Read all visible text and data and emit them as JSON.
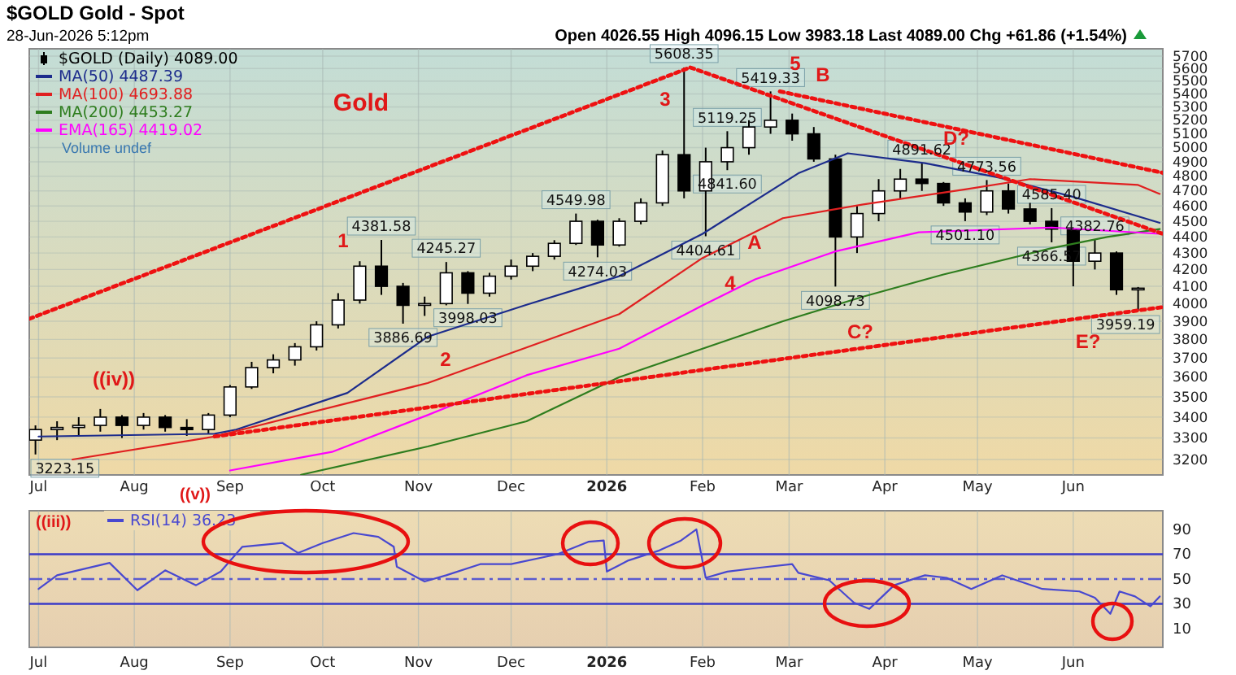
{
  "chart_data": [
    {
      "type": "candlestick",
      "title": "$GOLD Gold - Spot",
      "subtitle": "28-Jun-2026 5:12pm",
      "log": true,
      "grid": true,
      "legend": "top left",
      "xlim": [
        "2025-06-28",
        "2026-06-30"
      ],
      "ylim": [
        3130,
        5760
      ],
      "xticks": [
        {
          "value": "2025-07-01",
          "label": "Jul"
        },
        {
          "value": "2025-08-01",
          "label": "Aug"
        },
        {
          "value": "2025-09-01",
          "label": "Sep"
        },
        {
          "value": "2025-10-01",
          "label": "Oct"
        },
        {
          "value": "2025-11-01",
          "label": "Nov"
        },
        {
          "value": "2025-12-01",
          "label": "Dec"
        },
        {
          "value": "2026-01-01",
          "label": "2026"
        },
        {
          "value": "2026-02-01",
          "label": "Feb"
        },
        {
          "value": "2026-03-01",
          "label": "Mar"
        },
        {
          "value": "2026-04-01",
          "label": "Apr"
        },
        {
          "value": "2026-05-01",
          "label": "May"
        },
        {
          "value": "2026-06-01",
          "label": "Jun"
        }
      ],
      "yticks": [
        3200,
        3300,
        3400,
        3500,
        3600,
        3700,
        3800,
        3900,
        4000,
        4100,
        4200,
        4300,
        4400,
        4500,
        4600,
        4700,
        4800,
        4900,
        5000,
        5100,
        5200,
        5300,
        5400,
        5500,
        5600,
        5700
      ],
      "series": [
        {
          "name": "$GOLD (Daily) 4089.00",
          "color": "#000000",
          "x": [
            "2025-06-30",
            "2025-07-07",
            "2025-07-14",
            "2025-07-21",
            "2025-07-28",
            "2025-08-04",
            "2025-08-11",
            "2025-08-18",
            "2025-08-25",
            "2025-09-01",
            "2025-09-08",
            "2025-09-15",
            "2025-09-22",
            "2025-09-29",
            "2025-10-06",
            "2025-10-13",
            "2025-10-20",
            "2025-10-27",
            "2025-11-03",
            "2025-11-10",
            "2025-11-17",
            "2025-11-24",
            "2025-12-01",
            "2025-12-08",
            "2025-12-15",
            "2025-12-22",
            "2025-12-29",
            "2026-01-05",
            "2026-01-12",
            "2026-01-19",
            "2026-01-26",
            "2026-02-02",
            "2026-02-09",
            "2026-02-16",
            "2026-02-23",
            "2026-03-02",
            "2026-03-09",
            "2026-03-16",
            "2026-03-23",
            "2026-03-30",
            "2026-04-06",
            "2026-04-13",
            "2026-04-20",
            "2026-04-27",
            "2026-05-04",
            "2026-05-11",
            "2026-05-18",
            "2026-05-25",
            "2026-06-01",
            "2026-06-08",
            "2026-06-15",
            "2026-06-22"
          ],
          "ohlc": [
            [
              3290,
              3360,
              3223.15,
              3340
            ],
            [
              3340,
              3380,
              3290,
              3350
            ],
            [
              3350,
              3400,
              3310,
              3360
            ],
            [
              3360,
              3440,
              3330,
              3400
            ],
            [
              3400,
              3410,
              3300,
              3360
            ],
            [
              3360,
              3420,
              3340,
              3400
            ],
            [
              3400,
              3410,
              3330,
              3350
            ],
            [
              3350,
              3390,
              3310,
              3340
            ],
            [
              3340,
              3420,
              3320,
              3410
            ],
            [
              3410,
              3560,
              3400,
              3550
            ],
            [
              3550,
              3680,
              3540,
              3650
            ],
            [
              3650,
              3720,
              3620,
              3690
            ],
            [
              3690,
              3780,
              3660,
              3760
            ],
            [
              3760,
              3900,
              3740,
              3880
            ],
            [
              3880,
              4060,
              3860,
              4020
            ],
            [
              4020,
              4250,
              4000,
              4220
            ],
            [
              4220,
              4381.58,
              4050,
              4100
            ],
            [
              4100,
              4120,
              3886.69,
              3990
            ],
            [
              3990,
              4040,
              3930,
              4000
            ],
            [
              4000,
              4245.27,
              3990,
              4180
            ],
            [
              4180,
              4190,
              3998.03,
              4060
            ],
            [
              4060,
              4180,
              4040,
              4160
            ],
            [
              4160,
              4260,
              4140,
              4220
            ],
            [
              4220,
              4300,
              4190,
              4280
            ],
            [
              4280,
              4380,
              4260,
              4360
            ],
            [
              4360,
              4549.98,
              4350,
              4500
            ],
            [
              4500,
              4510,
              4274.03,
              4350
            ],
            [
              4350,
              4520,
              4340,
              4500
            ],
            [
              4500,
              4650,
              4480,
              4620
            ],
            [
              4620,
              4980,
              4600,
              4950
            ],
            [
              4950,
              5608.35,
              4650,
              4700
            ],
            [
              4700,
              5000,
              4404.61,
              4900
            ],
            [
              4900,
              5119.25,
              4841.6,
              5000
            ],
            [
              5000,
              5200,
              4950,
              5150
            ],
            [
              5150,
              5419.33,
              5100,
              5200
            ],
            [
              5200,
              5250,
              5050,
              5100
            ],
            [
              5100,
              5150,
              4900,
              4920
            ],
            [
              4920,
              4950,
              4098.73,
              4400
            ],
            [
              4400,
              4600,
              4300,
              4550
            ],
            [
              4550,
              4780,
              4500,
              4700
            ],
            [
              4700,
              4850,
              4650,
              4780
            ],
            [
              4780,
              4891.62,
              4700,
              4750
            ],
            [
              4750,
              4760,
              4600,
              4620
            ],
            [
              4620,
              4650,
              4501.1,
              4560
            ],
            [
              4560,
              4773.56,
              4540,
              4700
            ],
            [
              4700,
              4750,
              4550,
              4580
            ],
            [
              4580,
              4620,
              4480,
              4500
            ],
            [
              4500,
              4585.4,
              4366.57,
              4450
            ],
            [
              4450,
              4460,
              4100,
              4250
            ],
            [
              4250,
              4382.76,
              4200,
              4300
            ],
            [
              4300,
              4310,
              4050,
              4080
            ],
            [
              4080,
              4096.15,
              3959.19,
              4089
            ]
          ]
        },
        {
          "type": "line",
          "name": "MA(50) 4487.39",
          "color": "#1c2c8c",
          "x": [
            "2025-07-01",
            "2025-08-27",
            "2025-09-03",
            "2025-10-09",
            "2025-11-04",
            "2025-12-06",
            "2026-01-05",
            "2026-02-01",
            "2026-03-04",
            "2026-03-20",
            "2026-04-14",
            "2026-05-08",
            "2026-06-01",
            "2026-06-29"
          ],
          "values": [
            3307,
            3320,
            3340,
            3520,
            3815,
            3993,
            4160,
            4420,
            4820,
            4960,
            4890,
            4790,
            4660,
            4490
          ]
        },
        {
          "type": "line",
          "name": "MA(100) 4693.88",
          "color": "#e02020",
          "x": [
            "2025-07-12",
            "2025-08-27",
            "2025-11-04",
            "2026-01-05",
            "2026-02-01",
            "2026-02-27",
            "2026-03-25",
            "2026-04-27",
            "2026-05-18",
            "2026-06-22",
            "2026-06-29"
          ],
          "values": [
            3200,
            3307,
            3570,
            3940,
            4270,
            4520,
            4610,
            4710,
            4780,
            4740,
            4680
          ]
        },
        {
          "type": "line",
          "name": "MA(200) 4453.27",
          "color": "#2e7d1e",
          "x": [
            "2025-09-24",
            "2025-11-04",
            "2025-12-06",
            "2026-01-05",
            "2026-02-01",
            "2026-02-27",
            "2026-03-25",
            "2026-04-20",
            "2026-05-25",
            "2026-06-12",
            "2026-06-29"
          ],
          "values": [
            3131,
            3260,
            3380,
            3600,
            3750,
            3900,
            4040,
            4170,
            4330,
            4400,
            4450
          ]
        },
        {
          "type": "line",
          "name": "EMA(165) 4419.02",
          "color": "#ff00ff",
          "x": [
            "2025-09-01",
            "2025-10-04",
            "2025-11-04",
            "2025-12-06",
            "2026-01-05",
            "2026-02-01",
            "2026-02-18",
            "2026-03-16",
            "2026-04-12",
            "2026-05-25",
            "2026-06-29"
          ],
          "values": [
            3150,
            3235,
            3410,
            3610,
            3750,
            3990,
            4141,
            4310,
            4430,
            4460,
            4420
          ]
        },
        {
          "type": "line",
          "color": "#ee1111",
          "line_style": "dotted",
          "x": [
            "2025-06-28",
            "2026-01-28"
          ],
          "values": [
            3914,
            5608.35
          ]
        },
        {
          "type": "line",
          "color": "#ee1111",
          "line_style": "dotted",
          "x": [
            "2025-08-27",
            "2026-06-30"
          ],
          "values": [
            3307,
            3980
          ]
        },
        {
          "type": "line",
          "color": "#ee1111",
          "line_style": "dotted",
          "x": [
            "2026-01-28",
            "2026-06-30"
          ],
          "values": [
            5608.35,
            4420
          ]
        },
        {
          "type": "line",
          "color": "#ee1111",
          "line_style": "dotted",
          "x": [
            "2026-02-26",
            "2026-06-30"
          ],
          "values": [
            5419.33,
            4823
          ]
        }
      ],
      "annotations": [
        "Open 4026.55 High 4096.15 Low 3983.18 Last 4089.00 Chg +61.86 (+1.54%)",
        "Gold",
        "Volume undef",
        "((v))",
        "((iii))",
        "((iv))",
        "1",
        "2",
        "3",
        "4",
        "5",
        "A",
        "B",
        "C?",
        "D?",
        "E?",
        {
          "text": "3223.15",
          "x": "2025-06-30",
          "y": 3223.15
        },
        {
          "text": "4381.58",
          "x": "2025-10-20",
          "y": 4381.58
        },
        {
          "text": "3886.69",
          "x": "2025-10-27",
          "y": 3886.69
        },
        {
          "text": "4245.27",
          "x": "2025-11-10",
          "y": 4245.27
        },
        {
          "text": "3998.03",
          "x": "2025-11-17",
          "y": 3998.03
        },
        {
          "text": "4549.98",
          "x": "2025-12-22",
          "y": 4549.98
        },
        {
          "text": "4274.03",
          "x": "2025-12-29",
          "y": 4274.03
        },
        {
          "text": "5608.35",
          "x": "2026-01-26",
          "y": 5608.35
        },
        {
          "text": "4404.61",
          "x": "2026-02-02",
          "y": 4404.61
        },
        {
          "text": "5119.25",
          "x": "2026-02-09",
          "y": 5119.25
        },
        {
          "text": "4841.60",
          "x": "2026-02-09",
          "y": 4841.6
        },
        {
          "text": "5419.33",
          "x": "2026-02-23",
          "y": 5419.33
        },
        {
          "text": "4098.73",
          "x": "2026-03-16",
          "y": 4098.73
        },
        {
          "text": "4891.62",
          "x": "2026-04-13",
          "y": 4891.62
        },
        {
          "text": "4501.10",
          "x": "2026-04-27",
          "y": 4501.1
        },
        {
          "text": "4773.56",
          "x": "2026-05-04",
          "y": 4773.56
        },
        {
          "text": "4585.40",
          "x": "2026-05-25",
          "y": 4585.4
        },
        {
          "text": "4366.57",
          "x": "2026-05-25",
          "y": 4366.57
        },
        {
          "text": "4382.76",
          "x": "2026-06-08",
          "y": 4382.76
        },
        {
          "text": "3959.19",
          "x": "2026-06-22",
          "y": 3959.19
        }
      ]
    },
    {
      "type": "line",
      "grid": "x",
      "legend": "top left",
      "xlim": [
        "2025-06-28",
        "2026-06-30"
      ],
      "ylim": [
        -5,
        105
      ],
      "yticks": [
        10,
        30,
        50,
        70,
        90
      ],
      "xticks": [
        {
          "value": "2025-07-01",
          "label": "Jul"
        },
        {
          "value": "2025-08-01",
          "label": "Aug"
        },
        {
          "value": "2025-09-01",
          "label": "Sep"
        },
        {
          "value": "2025-10-01",
          "label": "Oct"
        },
        {
          "value": "2025-11-01",
          "label": "Nov"
        },
        {
          "value": "2025-12-01",
          "label": "Dec"
        },
        {
          "value": "2026-01-01",
          "label": "2026"
        },
        {
          "value": "2026-02-01",
          "label": "Feb"
        },
        {
          "value": "2026-03-01",
          "label": "Mar"
        },
        {
          "value": "2026-04-01",
          "label": "Apr"
        },
        {
          "value": "2026-05-01",
          "label": "May"
        },
        {
          "value": "2026-06-01",
          "label": "Jun"
        }
      ],
      "ref_lines": [
        {
          "axis": "y",
          "value": 70,
          "color": "#3b3bc8"
        },
        {
          "axis": "y",
          "value": 30,
          "color": "#3b3bc8"
        },
        {
          "axis": "y",
          "value": 50,
          "color": "#5a5ad0",
          "line_style": "dashed"
        }
      ],
      "series": [
        {
          "name": "RSI(14) 36.23",
          "color": "#4848d0",
          "x": [
            "2025-07-01",
            "2025-07-07",
            "2025-07-24",
            "2025-08-02",
            "2025-08-11",
            "2025-08-21",
            "2025-08-29",
            "2025-09-05",
            "2025-09-18",
            "2025-09-23",
            "2025-10-01",
            "2025-10-11",
            "2025-10-19",
            "2025-10-24",
            "2025-10-25",
            "2025-11-03",
            "2025-11-10",
            "2025-11-21",
            "2025-12-01",
            "2025-12-16",
            "2025-12-26",
            "2025-12-31",
            "2026-01-01",
            "2026-01-08",
            "2026-01-18",
            "2026-01-25",
            "2026-01-30",
            "2026-02-02",
            "2026-02-09",
            "2026-02-19",
            "2026-03-02",
            "2026-03-04",
            "2026-03-14",
            "2026-03-22",
            "2026-03-27",
            "2026-04-04",
            "2026-04-14",
            "2026-04-21",
            "2026-04-29",
            "2026-05-09",
            "2026-05-22",
            "2026-06-03",
            "2026-06-08",
            "2026-06-13",
            "2026-06-16",
            "2026-06-21",
            "2026-06-26",
            "2026-06-29"
          ],
          "values": [
            42,
            53,
            63,
            41,
            57,
            45,
            56,
            76,
            79,
            71,
            79,
            87,
            84,
            76,
            60,
            48,
            53,
            62,
            62,
            70,
            80,
            81,
            56,
            65,
            73,
            81,
            90,
            51,
            56,
            59,
            62,
            55,
            49,
            31,
            26,
            45,
            53,
            51,
            42,
            53,
            42,
            40,
            35,
            22,
            40,
            36,
            28,
            36
          ]
        }
      ]
    }
  ]
}
